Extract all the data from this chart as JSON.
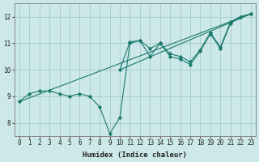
{
  "xlabel": "Humidex (Indice chaleur)",
  "bg_color": "#cce8e8",
  "grid_color": "#aacfcf",
  "line_color": "#1a7a6e",
  "xlim": [
    -0.5,
    23.5
  ],
  "ylim": [
    7.5,
    12.5
  ],
  "yticks": [
    8,
    9,
    10,
    11,
    12
  ],
  "xticks": [
    0,
    1,
    2,
    3,
    4,
    5,
    6,
    7,
    8,
    9,
    10,
    11,
    12,
    13,
    14,
    15,
    16,
    17,
    18,
    19,
    20,
    21,
    22,
    23
  ],
  "series1": [
    [
      0,
      8.8
    ],
    [
      1,
      9.1
    ],
    [
      2,
      9.2
    ],
    [
      3,
      9.2
    ],
    [
      4,
      9.1
    ],
    [
      5,
      9.0
    ],
    [
      6,
      9.1
    ],
    [
      7,
      9.0
    ],
    [
      8,
      8.6
    ],
    [
      9,
      7.6
    ],
    [
      10,
      8.2
    ],
    [
      11,
      11.0
    ],
    [
      12,
      11.1
    ],
    [
      13,
      10.5
    ],
    [
      14,
      11.0
    ],
    [
      15,
      10.5
    ],
    [
      16,
      10.4
    ],
    [
      17,
      10.2
    ],
    [
      18,
      10.7
    ],
    [
      19,
      11.35
    ],
    [
      20,
      10.8
    ],
    [
      21,
      11.75
    ],
    [
      22,
      12.0
    ],
    [
      23,
      12.1
    ]
  ],
  "series2": [
    [
      0,
      8.8
    ],
    [
      23,
      12.1
    ]
  ],
  "series3": [
    [
      10,
      10.0
    ],
    [
      11,
      11.05
    ],
    [
      12,
      11.1
    ],
    [
      13,
      10.8
    ],
    [
      14,
      11.0
    ],
    [
      15,
      10.6
    ],
    [
      16,
      10.5
    ],
    [
      17,
      10.3
    ],
    [
      18,
      10.75
    ],
    [
      19,
      11.4
    ],
    [
      20,
      10.85
    ],
    [
      21,
      11.8
    ],
    [
      22,
      12.0
    ],
    [
      23,
      12.1
    ]
  ],
  "series4": [
    [
      10,
      10.0
    ],
    [
      23,
      12.1
    ]
  ]
}
